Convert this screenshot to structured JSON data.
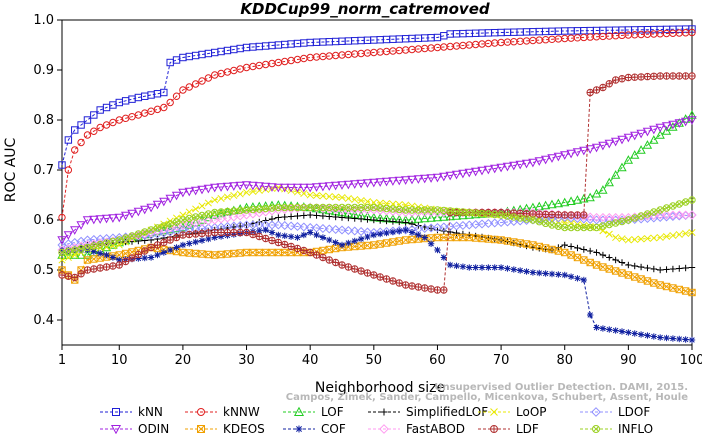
{
  "chart_data": {
    "type": "line",
    "title": "KDDCup99_norm_catremoved",
    "xlabel": "Neighborhood size",
    "ylabel": "ROC AUC",
    "xlim": [
      1,
      100
    ],
    "ylim": [
      0.35,
      1.0
    ],
    "xticks": [
      "1",
      "10",
      "20",
      "30",
      "40",
      "50",
      "60",
      "70",
      "80",
      "90",
      "100"
    ],
    "yticks": [
      "0.4",
      "0.5",
      "0.6",
      "0.7",
      "0.8",
      "0.9",
      "1.0"
    ],
    "watermark": [
      "Campos, Zimek, Sander, Campello, Micenkova, Schubert, Assent, Houle",
      "Unsupervised Outlier Detection. DAMI, 2015."
    ],
    "legend_position": "bottom",
    "series": [
      {
        "name": "kNN",
        "color": "#1f1fd6",
        "marker": "square",
        "points": [
          [
            1,
            0.71
          ],
          [
            2,
            0.76
          ],
          [
            3,
            0.78
          ],
          [
            5,
            0.8
          ],
          [
            7,
            0.82
          ],
          [
            10,
            0.835
          ],
          [
            13,
            0.845
          ],
          [
            17,
            0.855
          ],
          [
            18,
            0.915
          ],
          [
            20,
            0.925
          ],
          [
            25,
            0.935
          ],
          [
            30,
            0.945
          ],
          [
            35,
            0.95
          ],
          [
            40,
            0.955
          ],
          [
            50,
            0.96
          ],
          [
            60,
            0.965
          ],
          [
            62,
            0.972
          ],
          [
            70,
            0.975
          ],
          [
            80,
            0.978
          ],
          [
            90,
            0.98
          ],
          [
            100,
            0.982
          ]
        ]
      },
      {
        "name": "kNNW",
        "color": "#e02020",
        "marker": "circle",
        "points": [
          [
            1,
            0.605
          ],
          [
            2,
            0.7
          ],
          [
            3,
            0.74
          ],
          [
            5,
            0.77
          ],
          [
            7,
            0.785
          ],
          [
            10,
            0.8
          ],
          [
            13,
            0.81
          ],
          [
            17,
            0.825
          ],
          [
            18,
            0.835
          ],
          [
            20,
            0.86
          ],
          [
            25,
            0.89
          ],
          [
            30,
            0.905
          ],
          [
            35,
            0.915
          ],
          [
            40,
            0.925
          ],
          [
            50,
            0.935
          ],
          [
            60,
            0.945
          ],
          [
            70,
            0.955
          ],
          [
            80,
            0.963
          ],
          [
            90,
            0.97
          ],
          [
            100,
            0.975
          ]
        ]
      },
      {
        "name": "LOF",
        "color": "#22cc22",
        "marker": "triangle-up",
        "points": [
          [
            1,
            0.53
          ],
          [
            5,
            0.53
          ],
          [
            10,
            0.555
          ],
          [
            15,
            0.575
          ],
          [
            20,
            0.585
          ],
          [
            25,
            0.61
          ],
          [
            30,
            0.625
          ],
          [
            35,
            0.63
          ],
          [
            40,
            0.625
          ],
          [
            45,
            0.615
          ],
          [
            50,
            0.605
          ],
          [
            55,
            0.6
          ],
          [
            60,
            0.605
          ],
          [
            65,
            0.61
          ],
          [
            70,
            0.615
          ],
          [
            75,
            0.625
          ],
          [
            80,
            0.635
          ],
          [
            84,
            0.645
          ],
          [
            86,
            0.66
          ],
          [
            90,
            0.72
          ],
          [
            95,
            0.77
          ],
          [
            100,
            0.81
          ]
        ]
      },
      {
        "name": "SimplifiedLOF",
        "color": "#000000",
        "marker": "plus",
        "points": [
          [
            1,
            0.535
          ],
          [
            5,
            0.55
          ],
          [
            10,
            0.555
          ],
          [
            15,
            0.56
          ],
          [
            20,
            0.57
          ],
          [
            25,
            0.58
          ],
          [
            30,
            0.59
          ],
          [
            35,
            0.605
          ],
          [
            40,
            0.61
          ],
          [
            45,
            0.605
          ],
          [
            50,
            0.6
          ],
          [
            55,
            0.595
          ],
          [
            60,
            0.58
          ],
          [
            65,
            0.57
          ],
          [
            70,
            0.56
          ],
          [
            75,
            0.545
          ],
          [
            78,
            0.54
          ],
          [
            80,
            0.55
          ],
          [
            85,
            0.535
          ],
          [
            90,
            0.51
          ],
          [
            95,
            0.5
          ],
          [
            100,
            0.505
          ]
        ]
      },
      {
        "name": "LoOP",
        "color": "#e8e800",
        "marker": "x",
        "points": [
          [
            1,
            0.52
          ],
          [
            5,
            0.54
          ],
          [
            10,
            0.55
          ],
          [
            15,
            0.58
          ],
          [
            20,
            0.61
          ],
          [
            25,
            0.64
          ],
          [
            30,
            0.655
          ],
          [
            35,
            0.665
          ],
          [
            40,
            0.65
          ],
          [
            45,
            0.645
          ],
          [
            50,
            0.635
          ],
          [
            55,
            0.63
          ],
          [
            60,
            0.62
          ],
          [
            65,
            0.615
          ],
          [
            70,
            0.61
          ],
          [
            75,
            0.605
          ],
          [
            80,
            0.595
          ],
          [
            85,
            0.585
          ],
          [
            88,
            0.565
          ],
          [
            90,
            0.56
          ],
          [
            95,
            0.565
          ],
          [
            100,
            0.575
          ]
        ]
      },
      {
        "name": "LDOF",
        "color": "#9090ff",
        "marker": "diamond",
        "points": [
          [
            1,
            0.55
          ],
          [
            5,
            0.56
          ],
          [
            10,
            0.565
          ],
          [
            15,
            0.57
          ],
          [
            20,
            0.58
          ],
          [
            25,
            0.585
          ],
          [
            30,
            0.59
          ],
          [
            35,
            0.59
          ],
          [
            40,
            0.585
          ],
          [
            45,
            0.58
          ],
          [
            50,
            0.575
          ],
          [
            55,
            0.58
          ],
          [
            60,
            0.585
          ],
          [
            65,
            0.59
          ],
          [
            70,
            0.595
          ],
          [
            75,
            0.6
          ],
          [
            80,
            0.605
          ],
          [
            85,
            0.6
          ],
          [
            90,
            0.6
          ],
          [
            95,
            0.605
          ],
          [
            100,
            0.61
          ]
        ]
      },
      {
        "name": "ODIN",
        "color": "#a020e0",
        "marker": "triangle-down",
        "points": [
          [
            1,
            0.56
          ],
          [
            5,
            0.6
          ],
          [
            10,
            0.605
          ],
          [
            15,
            0.625
          ],
          [
            20,
            0.655
          ],
          [
            25,
            0.665
          ],
          [
            30,
            0.67
          ],
          [
            35,
            0.665
          ],
          [
            40,
            0.665
          ],
          [
            45,
            0.67
          ],
          [
            50,
            0.675
          ],
          [
            55,
            0.68
          ],
          [
            60,
            0.685
          ],
          [
            65,
            0.695
          ],
          [
            70,
            0.705
          ],
          [
            75,
            0.715
          ],
          [
            80,
            0.73
          ],
          [
            85,
            0.745
          ],
          [
            90,
            0.765
          ],
          [
            95,
            0.785
          ],
          [
            100,
            0.8
          ]
        ]
      },
      {
        "name": "KDEOS",
        "color": "#f0a000",
        "marker": "square-x",
        "points": [
          [
            1,
            0.5
          ],
          [
            3,
            0.48
          ],
          [
            5,
            0.52
          ],
          [
            10,
            0.53
          ],
          [
            15,
            0.545
          ],
          [
            20,
            0.535
          ],
          [
            25,
            0.53
          ],
          [
            30,
            0.535
          ],
          [
            35,
            0.535
          ],
          [
            40,
            0.535
          ],
          [
            45,
            0.545
          ],
          [
            50,
            0.55
          ],
          [
            55,
            0.56
          ],
          [
            60,
            0.565
          ],
          [
            65,
            0.565
          ],
          [
            70,
            0.56
          ],
          [
            75,
            0.55
          ],
          [
            80,
            0.535
          ],
          [
            85,
            0.51
          ],
          [
            90,
            0.49
          ],
          [
            95,
            0.47
          ],
          [
            100,
            0.455
          ]
        ]
      },
      {
        "name": "COF",
        "color": "#1020a0",
        "marker": "star",
        "points": [
          [
            1,
            0.54
          ],
          [
            5,
            0.54
          ],
          [
            8,
            0.53
          ],
          [
            10,
            0.52
          ],
          [
            15,
            0.525
          ],
          [
            20,
            0.55
          ],
          [
            25,
            0.565
          ],
          [
            30,
            0.575
          ],
          [
            33,
            0.58
          ],
          [
            35,
            0.57
          ],
          [
            38,
            0.565
          ],
          [
            40,
            0.575
          ],
          [
            45,
            0.55
          ],
          [
            50,
            0.57
          ],
          [
            55,
            0.58
          ],
          [
            58,
            0.565
          ],
          [
            60,
            0.54
          ],
          [
            62,
            0.51
          ],
          [
            65,
            0.505
          ],
          [
            70,
            0.505
          ],
          [
            75,
            0.495
          ],
          [
            80,
            0.49
          ],
          [
            83,
            0.48
          ],
          [
            84,
            0.41
          ],
          [
            85,
            0.385
          ],
          [
            90,
            0.375
          ],
          [
            95,
            0.365
          ],
          [
            100,
            0.36
          ]
        ]
      },
      {
        "name": "FastABOD",
        "color": "#ff9af0",
        "marker": "diamond",
        "points": [
          [
            1,
            0.54
          ],
          [
            5,
            0.55
          ],
          [
            10,
            0.56
          ],
          [
            15,
            0.575
          ],
          [
            20,
            0.59
          ],
          [
            25,
            0.6
          ],
          [
            30,
            0.61
          ],
          [
            35,
            0.62
          ],
          [
            40,
            0.625
          ],
          [
            45,
            0.62
          ],
          [
            50,
            0.62
          ],
          [
            55,
            0.615
          ],
          [
            60,
            0.615
          ],
          [
            65,
            0.615
          ],
          [
            70,
            0.615
          ],
          [
            75,
            0.615
          ],
          [
            80,
            0.61
          ],
          [
            85,
            0.605
          ],
          [
            90,
            0.605
          ],
          [
            95,
            0.61
          ],
          [
            100,
            0.61
          ]
        ]
      },
      {
        "name": "LDF",
        "color": "#b03030",
        "marker": "circle-plus",
        "points": [
          [
            1,
            0.49
          ],
          [
            3,
            0.485
          ],
          [
            5,
            0.5
          ],
          [
            10,
            0.51
          ],
          [
            15,
            0.545
          ],
          [
            20,
            0.57
          ],
          [
            25,
            0.575
          ],
          [
            30,
            0.575
          ],
          [
            35,
            0.555
          ],
          [
            40,
            0.535
          ],
          [
            45,
            0.51
          ],
          [
            50,
            0.49
          ],
          [
            55,
            0.47
          ],
          [
            60,
            0.46
          ],
          [
            61,
            0.46
          ],
          [
            62,
            0.615
          ],
          [
            65,
            0.615
          ],
          [
            70,
            0.615
          ],
          [
            75,
            0.612
          ],
          [
            80,
            0.61
          ],
          [
            83,
            0.61
          ],
          [
            84,
            0.855
          ],
          [
            86,
            0.865
          ],
          [
            88,
            0.88
          ],
          [
            90,
            0.885
          ],
          [
            95,
            0.888
          ],
          [
            100,
            0.888
          ]
        ]
      },
      {
        "name": "INFLO",
        "color": "#9ad020",
        "marker": "circle-x",
        "points": [
          [
            1,
            0.535
          ],
          [
            5,
            0.545
          ],
          [
            10,
            0.56
          ],
          [
            15,
            0.58
          ],
          [
            20,
            0.6
          ],
          [
            25,
            0.615
          ],
          [
            30,
            0.62
          ],
          [
            35,
            0.625
          ],
          [
            40,
            0.625
          ],
          [
            45,
            0.625
          ],
          [
            50,
            0.625
          ],
          [
            55,
            0.62
          ],
          [
            60,
            0.62
          ],
          [
            65,
            0.615
          ],
          [
            70,
            0.61
          ],
          [
            75,
            0.6
          ],
          [
            78,
            0.59
          ],
          [
            80,
            0.585
          ],
          [
            85,
            0.585
          ],
          [
            90,
            0.6
          ],
          [
            95,
            0.62
          ],
          [
            100,
            0.64
          ]
        ]
      }
    ]
  }
}
